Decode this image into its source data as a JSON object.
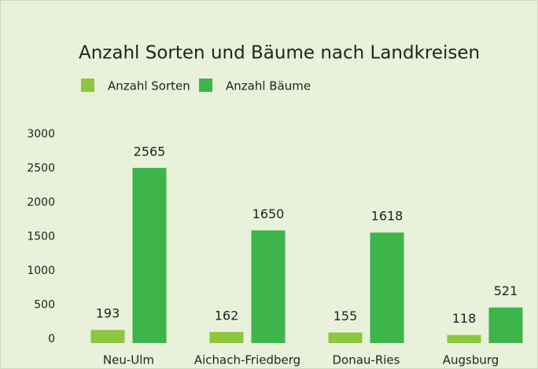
{
  "chart_data": {
    "type": "bar",
    "title": "Anzahl Sorten und Bäume nach Landkreisen",
    "categories": [
      "Neu-Ulm",
      "Aichach-Friedberg",
      "Donau-Ries",
      "Augsburg"
    ],
    "series": [
      {
        "name": "Anzahl Sorten",
        "color": "#8dc63f",
        "values": [
          193,
          162,
          155,
          118
        ]
      },
      {
        "name": "Anzahl Bäume",
        "color": "#3db54a",
        "values": [
          2565,
          1650,
          1618,
          521
        ]
      }
    ],
    "ylim": [
      0,
      3000
    ],
    "yticks": [
      0,
      500,
      1000,
      1500,
      2000,
      2500,
      3000
    ],
    "grid": false
  }
}
